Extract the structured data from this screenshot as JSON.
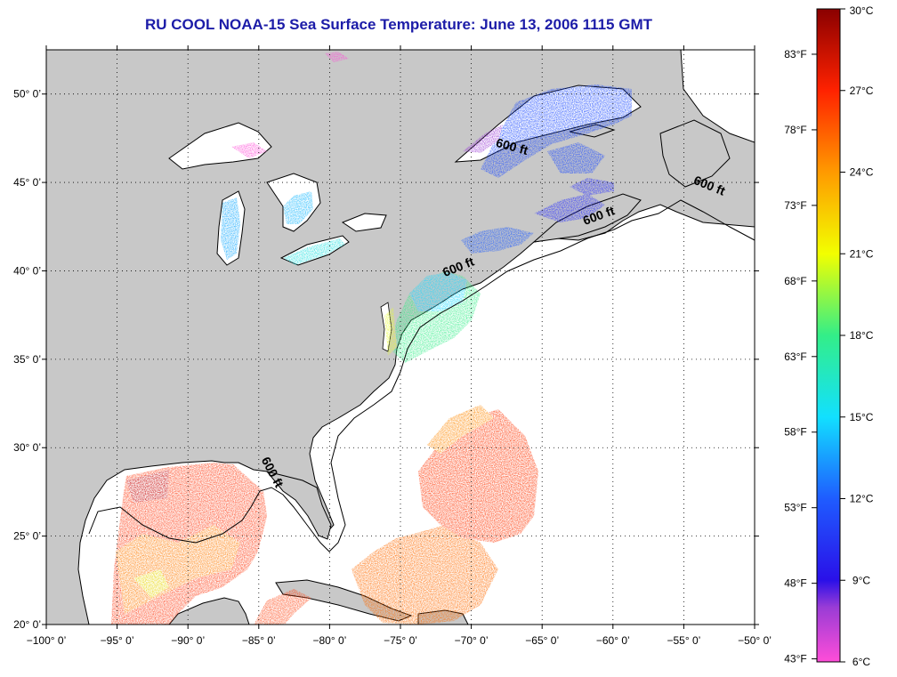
{
  "title": "RU COOL  NOAA-15  Sea Surface Temperature:  June 13, 2006 1115 GMT",
  "map": {
    "lon_range": [
      -100,
      -50
    ],
    "lat_range": [
      20,
      52.5
    ],
    "x_ticks": [
      {
        "lon": -100,
        "label": "−100° 0’"
      },
      {
        "lon": -95,
        "label": "−95° 0’"
      },
      {
        "lon": -90,
        "label": "−90° 0’"
      },
      {
        "lon": -85,
        "label": "−85° 0’"
      },
      {
        "lon": -80,
        "label": "−80° 0’"
      },
      {
        "lon": -75,
        "label": "−75° 0’"
      },
      {
        "lon": -70,
        "label": "−70° 0’"
      },
      {
        "lon": -65,
        "label": "−65° 0’"
      },
      {
        "lon": -60,
        "label": "−60° 0’"
      },
      {
        "lon": -55,
        "label": "−55° 0’"
      },
      {
        "lon": -50,
        "label": "−50° 0’"
      }
    ],
    "y_ticks": [
      {
        "lat": 20,
        "label": "20° 0’"
      },
      {
        "lat": 25,
        "label": "25° 0’"
      },
      {
        "lat": 30,
        "label": "30° 0’"
      },
      {
        "lat": 35,
        "label": "35° 0’"
      },
      {
        "lat": 40,
        "label": "40° 0’"
      },
      {
        "lat": 45,
        "label": "45° 0’"
      },
      {
        "lat": 50,
        "label": "50° 0’"
      }
    ],
    "contour_labels": [
      {
        "text": "600 ft",
        "lon": -67.2,
        "lat": 46.8,
        "rotate": 15
      },
      {
        "text": "600 ft",
        "lon": -53.3,
        "lat": 44.6,
        "rotate": 22
      },
      {
        "text": "600 ft",
        "lon": -60.9,
        "lat": 42.9,
        "rotate": -20
      },
      {
        "text": "600 ft",
        "lon": -70.8,
        "lat": 40.0,
        "rotate": -22
      },
      {
        "text": "600 ft",
        "lon": -84.3,
        "lat": 28.5,
        "rotate": 62
      }
    ],
    "colors": {
      "land": "#c8c8c8",
      "ocean": "#ffffff",
      "grid": "#000000",
      "title": "#1c1ca8"
    }
  },
  "colorbar": {
    "celsius": [
      {
        "value": 30,
        "label": "30°C"
      },
      {
        "value": 27,
        "label": "27°C"
      },
      {
        "value": 24,
        "label": "24°C"
      },
      {
        "value": 21,
        "label": "21°C"
      },
      {
        "value": 18,
        "label": "18°C"
      },
      {
        "value": 15,
        "label": "15°C"
      },
      {
        "value": 12,
        "label": "12°C"
      },
      {
        "value": 9,
        "label": "9°C"
      },
      {
        "value": 6,
        "label": "6°C"
      }
    ],
    "fahrenheit": [
      {
        "value": 83,
        "label": "83°F"
      },
      {
        "value": 78,
        "label": "78°F"
      },
      {
        "value": 73,
        "label": "73°F"
      },
      {
        "value": 68,
        "label": "68°F"
      },
      {
        "value": 63,
        "label": "63°F"
      },
      {
        "value": 58,
        "label": "58°F"
      },
      {
        "value": 53,
        "label": "53°F"
      },
      {
        "value": 48,
        "label": "48°F"
      },
      {
        "value": 43,
        "label": "43°F"
      }
    ],
    "range_c": [
      6,
      30
    ],
    "stops": [
      {
        "value": 6,
        "color": "#ff4dd8"
      },
      {
        "value": 8,
        "color": "#9a3cd6"
      },
      {
        "value": 9,
        "color": "#2a10e8"
      },
      {
        "value": 12,
        "color": "#1f5cff"
      },
      {
        "value": 15,
        "color": "#12e0ff"
      },
      {
        "value": 18,
        "color": "#33ee88"
      },
      {
        "value": 21,
        "color": "#f2ff00"
      },
      {
        "value": 24,
        "color": "#ff9a00"
      },
      {
        "value": 27,
        "color": "#ff2200"
      },
      {
        "value": 30,
        "color": "#8a0000"
      }
    ]
  }
}
